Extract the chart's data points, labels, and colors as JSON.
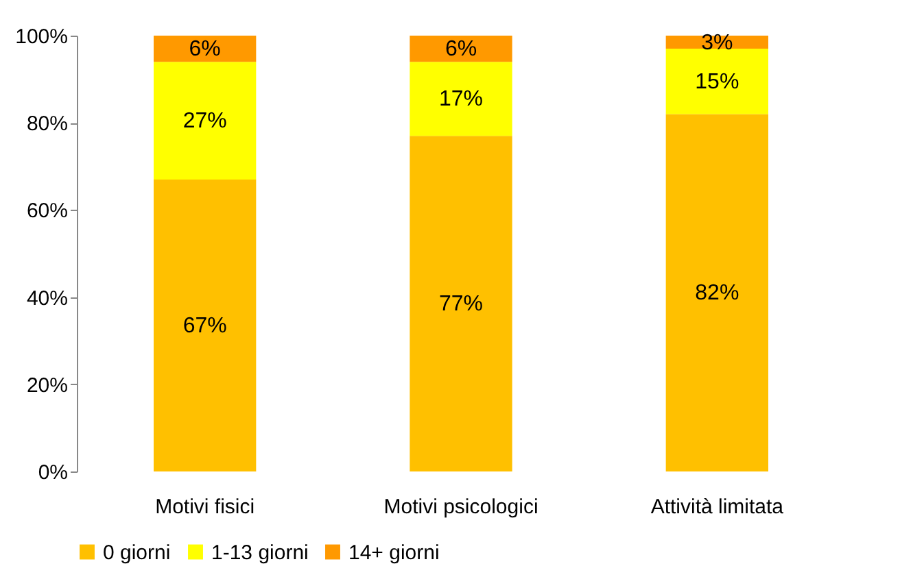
{
  "chart_data": {
    "type": "bar",
    "stacked": true,
    "categories": [
      "Motivi fisici",
      "Motivi psicologici",
      "Attività limitata"
    ],
    "series": [
      {
        "name": "0 giorni",
        "color": "#ffc000",
        "values": [
          67,
          77,
          82
        ],
        "value_labels": [
          "67%",
          "77%",
          "82%"
        ]
      },
      {
        "name": "1-13 giorni",
        "color": "#ffff00",
        "values": [
          27,
          17,
          15
        ],
        "value_labels": [
          "27%",
          "17%",
          "15%"
        ]
      },
      {
        "name": "14+ giorni",
        "color": "#ff9900",
        "values": [
          6,
          6,
          3
        ],
        "value_labels": [
          "6%",
          "6%",
          "3%"
        ]
      }
    ],
    "ylim": [
      0,
      100
    ],
    "yticks": [
      {
        "value": 0,
        "label": "0%"
      },
      {
        "value": 20,
        "label": "20%"
      },
      {
        "value": 40,
        "label": "40%"
      },
      {
        "value": 60,
        "label": "60%"
      },
      {
        "value": 80,
        "label": "80%"
      },
      {
        "value": 100,
        "label": "100%"
      }
    ],
    "legend": "bottom"
  }
}
